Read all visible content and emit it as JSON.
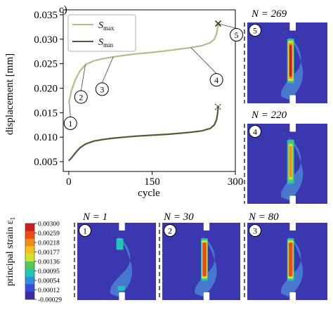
{
  "panel_label": "c)",
  "chart_data": {
    "type": "line",
    "xlabel": "cycle",
    "ylabel": "displacement [mm]",
    "xlim": [
      -10,
      300
    ],
    "ylim": [
      0.003,
      0.036
    ],
    "xticks": [
      0,
      150,
      300
    ],
    "yticks": [
      0.005,
      0.01,
      0.015,
      0.02,
      0.025,
      0.03,
      0.035
    ],
    "legend_position": "top-left",
    "series": [
      {
        "name": "S_max",
        "legend_main": "S",
        "legend_sub": "max",
        "color": "#b3bc8a",
        "end_marker": "x",
        "x": [
          0,
          5,
          12,
          20,
          30,
          45,
          60,
          80,
          100,
          120,
          150,
          180,
          200,
          220,
          240,
          255,
          262,
          266,
          268,
          269
        ],
        "y": [
          0.017,
          0.0196,
          0.0218,
          0.0235,
          0.0248,
          0.0256,
          0.026,
          0.0264,
          0.0267,
          0.027,
          0.0273,
          0.0277,
          0.028,
          0.0283,
          0.0287,
          0.0293,
          0.03,
          0.031,
          0.0322,
          0.0332
        ]
      },
      {
        "name": "S_min",
        "legend_main": "S",
        "legend_sub": "min",
        "color": "#505a34",
        "end_marker": "x-dotted",
        "x": [
          0,
          5,
          12,
          20,
          30,
          45,
          60,
          80,
          100,
          120,
          150,
          180,
          200,
          220,
          240,
          255,
          262,
          266,
          268,
          269
        ],
        "y": [
          0.0052,
          0.0058,
          0.0068,
          0.0078,
          0.0086,
          0.0092,
          0.0095,
          0.0098,
          0.01,
          0.0102,
          0.0104,
          0.0106,
          0.0108,
          0.011,
          0.0113,
          0.0118,
          0.0125,
          0.0135,
          0.0148,
          0.0162
        ]
      }
    ],
    "annotations": [
      {
        "label": "1",
        "x": 1,
        "y": 0.017
      },
      {
        "label": "2",
        "x": 30,
        "y": 0.0248
      },
      {
        "label": "3",
        "x": 80,
        "y": 0.0264
      },
      {
        "label": "4",
        "x": 220,
        "y": 0.0283
      },
      {
        "label": "5",
        "x": 269,
        "y": 0.0332
      }
    ]
  },
  "snapshots": [
    {
      "num": "5",
      "n_label": "N = 269",
      "damage": "severe"
    },
    {
      "num": "4",
      "n_label": "N = 220",
      "damage": "high"
    },
    {
      "num": "1",
      "n_label": "N = 1",
      "damage": "low"
    },
    {
      "num": "2",
      "n_label": "N = 30",
      "damage": "medium"
    },
    {
      "num": "3",
      "n_label": "N = 80",
      "damage": "medium"
    }
  ],
  "colorbar": {
    "label": "principal strain ε",
    "label_sub": "1",
    "ticks": [
      "0.00300",
      "0.00259",
      "0.00218",
      "0.00177",
      "0.00136",
      "0.00095",
      "0.00054",
      "0.00012",
      "-0.00029"
    ],
    "colors": [
      "#cc1f1f",
      "#ee4a1a",
      "#f38a1c",
      "#f4c21e",
      "#cde52a",
      "#54c85a",
      "#23c4b8",
      "#2f8fe0",
      "#3a4bd8",
      "#3b2ca4"
    ]
  },
  "colors": {
    "background_blue": "#3a37b0",
    "region_blue": "#4a7fd2",
    "gap_white": "#ffffff"
  }
}
